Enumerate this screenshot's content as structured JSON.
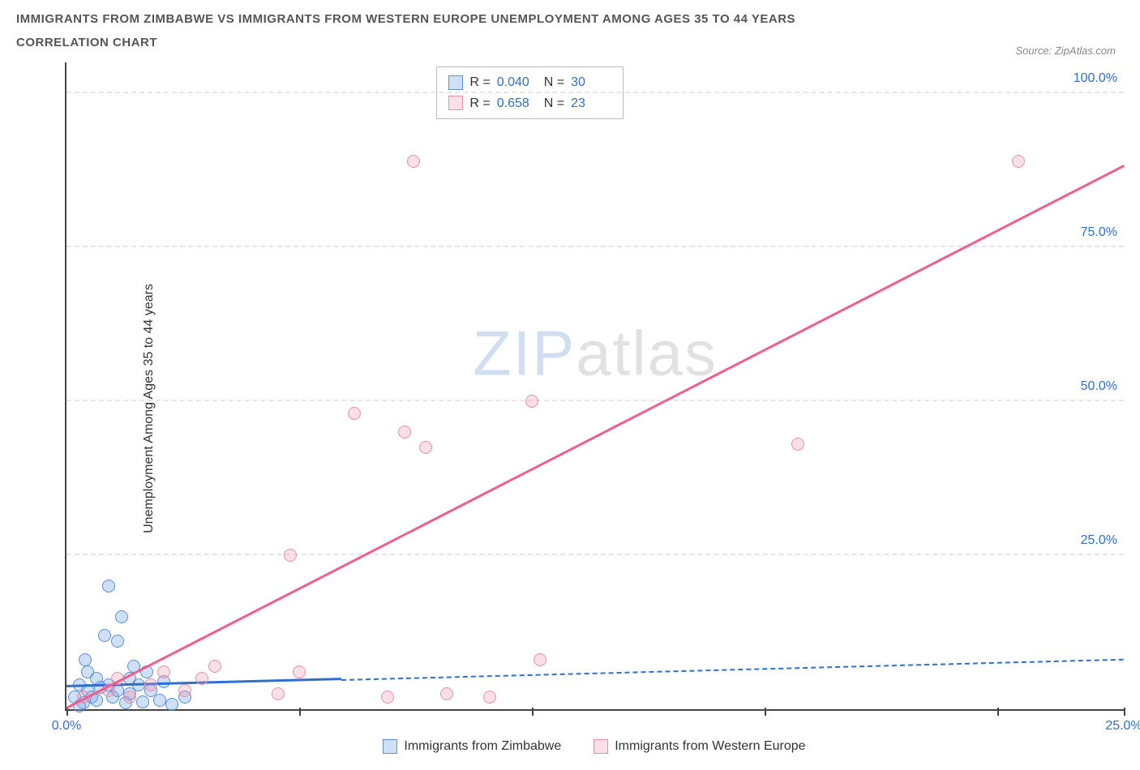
{
  "title_line1": "IMMIGRANTS FROM ZIMBABWE VS IMMIGRANTS FROM WESTERN EUROPE UNEMPLOYMENT AMONG AGES 35 TO 44 YEARS",
  "title_line2": "CORRELATION CHART",
  "source_prefix": "Source: ",
  "source_name": "ZipAtlas.com",
  "ylabel": "Unemployment Among Ages 35 to 44 years",
  "watermark_a": "ZIP",
  "watermark_b": "atlas",
  "chart": {
    "type": "scatter",
    "xlim": [
      0,
      25
    ],
    "ylim": [
      0,
      105
    ],
    "xtick_positions": [
      0,
      5.5,
      11,
      16.5,
      22,
      25
    ],
    "xtick_labels": {
      "0": "0.0%",
      "25": "25.0%"
    },
    "yticks": [
      25,
      50,
      75,
      100
    ],
    "ytick_labels": [
      "25.0%",
      "50.0%",
      "75.0%",
      "100.0%"
    ],
    "grid_color": "#e6e6e6",
    "axis_color": "#444444",
    "background_color": "#ffffff",
    "marker_radius": 8,
    "series": [
      {
        "id": "s1",
        "label": "Immigrants from Zimbabwe",
        "color_fill": "rgba(115,165,230,0.35)",
        "color_stroke": "#5b8fd6",
        "trend_color": "#2f6fd0",
        "R": "0.040",
        "N": "30",
        "trend": {
          "x1": 0,
          "y1": 3.5,
          "x2_solid": 6.5,
          "x2_dashed": 25,
          "y2": 8.0
        },
        "points": [
          [
            0.2,
            2
          ],
          [
            0.3,
            4
          ],
          [
            0.4,
            1
          ],
          [
            0.5,
            3
          ],
          [
            0.5,
            6
          ],
          [
            0.6,
            2
          ],
          [
            0.7,
            5
          ],
          [
            0.7,
            1.5
          ],
          [
            0.8,
            3.5
          ],
          [
            0.9,
            12
          ],
          [
            1.0,
            4
          ],
          [
            1.0,
            20
          ],
          [
            1.1,
            2
          ],
          [
            1.2,
            11
          ],
          [
            1.2,
            3
          ],
          [
            1.3,
            15
          ],
          [
            1.4,
            1
          ],
          [
            1.5,
            5
          ],
          [
            1.5,
            2.5
          ],
          [
            1.7,
            4
          ],
          [
            1.8,
            1.2
          ],
          [
            2.0,
            3
          ],
          [
            2.2,
            1.5
          ],
          [
            2.3,
            4.5
          ],
          [
            2.5,
            0.8
          ],
          [
            2.8,
            2
          ],
          [
            1.9,
            6
          ],
          [
            0.45,
            8
          ],
          [
            0.3,
            0.5
          ],
          [
            1.6,
            7
          ]
        ]
      },
      {
        "id": "s2",
        "label": "Immigrants from Western Europe",
        "color_fill": "rgba(240,140,170,0.28)",
        "color_stroke": "#e790ad",
        "trend_color": "#ef5f8e",
        "R": "0.658",
        "N": "23",
        "trend": {
          "x1": 0,
          "y1": 0,
          "x2_solid": 25,
          "x2_dashed": 25,
          "y2": 88
        },
        "points": [
          [
            0.4,
            2
          ],
          [
            1.0,
            3
          ],
          [
            1.2,
            5
          ],
          [
            1.5,
            2
          ],
          [
            2.0,
            4
          ],
          [
            2.3,
            6
          ],
          [
            2.8,
            3
          ],
          [
            3.2,
            5
          ],
          [
            3.5,
            7
          ],
          [
            5.0,
            2.5
          ],
          [
            5.3,
            25
          ],
          [
            5.5,
            6
          ],
          [
            6.8,
            48
          ],
          [
            7.6,
            2
          ],
          [
            8.0,
            45
          ],
          [
            8.5,
            42.5
          ],
          [
            8.2,
            89
          ],
          [
            9.0,
            2.5
          ],
          [
            10.0,
            2
          ],
          [
            11.0,
            50
          ],
          [
            11.2,
            8
          ],
          [
            17.3,
            43
          ],
          [
            22.5,
            89
          ]
        ]
      }
    ]
  },
  "stats_box": {
    "R_label": "R =",
    "N_label": "N ="
  }
}
